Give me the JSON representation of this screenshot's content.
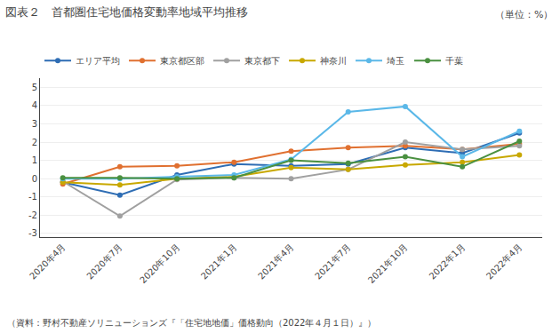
{
  "chart_data": {
    "type": "line",
    "title": "図表２　首都圏住宅地価格変動率地域平均推移",
    "annotations": [
      "（単位：%）",
      "（資料：野村不動産ソリニューションズ『「住宅地地価」価格動向（2022年４月１日）』）"
    ],
    "categories": [
      "2020年4月",
      "2020年7月",
      "2020年10月",
      "2021年1月",
      "2021年4月",
      "2021年7月",
      "2021年10月",
      "2022年1月",
      "2022年4月"
    ],
    "series": [
      {
        "name": "エリア平均",
        "color": "#2E6DB4",
        "marker": "circle",
        "values": [
          -0.2,
          -0.9,
          0.2,
          0.8,
          0.7,
          0.8,
          1.7,
          1.4,
          2.5
        ]
      },
      {
        "name": "東京都区部",
        "color": "#E07030",
        "marker": "circle",
        "values": [
          -0.3,
          0.65,
          0.7,
          0.9,
          1.5,
          1.7,
          1.8,
          1.6,
          1.9
        ]
      },
      {
        "name": "東京都下",
        "color": "#A0A0A0",
        "marker": "circle",
        "values": [
          -0.15,
          -2.05,
          -0.05,
          0.05,
          0.0,
          0.5,
          2.0,
          1.6,
          1.8
        ]
      },
      {
        "name": "神奈川",
        "color": "#C8A800",
        "marker": "circle",
        "values": [
          -0.2,
          -0.35,
          0.0,
          0.1,
          0.6,
          0.5,
          0.75,
          0.9,
          1.3
        ]
      },
      {
        "name": "埼玉",
        "color": "#5BB8E8",
        "marker": "circle",
        "values": [
          0.0,
          0.0,
          0.1,
          0.2,
          1.05,
          3.65,
          3.95,
          1.2,
          2.6
        ]
      },
      {
        "name": "千葉",
        "color": "#4A9040",
        "marker": "circle",
        "values": [
          0.05,
          0.05,
          0.0,
          0.05,
          1.0,
          0.85,
          1.2,
          0.65,
          2.05
        ]
      }
    ],
    "ylim": [
      -3.2,
      5.5
    ],
    "yticks": [
      -3,
      -2,
      -1,
      0,
      1,
      2,
      3,
      4,
      5
    ],
    "grid": true,
    "legend": "top"
  }
}
